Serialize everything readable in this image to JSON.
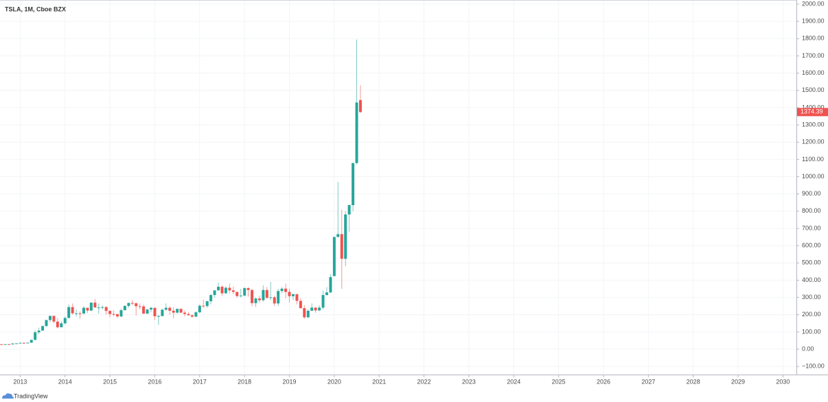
{
  "chart_data": {
    "type": "candlestick",
    "title": "TSLA, 1M, Cboe BZX",
    "footer": "TradingView",
    "up_color": "#26a69a",
    "down_color": "#ef5350",
    "grid": true,
    "x": [
      2012.583,
      2012.667,
      2012.75,
      2012.833,
      2012.917,
      2013,
      2013.083,
      2013.167,
      2013.25,
      2013.333,
      2013.417,
      2013.5,
      2013.583,
      2013.667,
      2013.75,
      2013.833,
      2013.917,
      2014,
      2014.083,
      2014.167,
      2014.25,
      2014.333,
      2014.417,
      2014.5,
      2014.583,
      2014.667,
      2014.75,
      2014.833,
      2014.917,
      2015,
      2015.083,
      2015.167,
      2015.25,
      2015.333,
      2015.417,
      2015.5,
      2015.583,
      2015.667,
      2015.75,
      2015.833,
      2015.917,
      2016,
      2016.083,
      2016.167,
      2016.25,
      2016.333,
      2016.417,
      2016.5,
      2016.583,
      2016.667,
      2016.75,
      2016.833,
      2016.917,
      2017,
      2017.083,
      2017.167,
      2017.25,
      2017.333,
      2017.417,
      2017.5,
      2017.583,
      2017.667,
      2017.75,
      2017.833,
      2017.917,
      2018,
      2018.083,
      2018.167,
      2018.25,
      2018.333,
      2018.417,
      2018.5,
      2018.583,
      2018.667,
      2018.75,
      2018.833,
      2018.917,
      2019,
      2019.083,
      2019.167,
      2019.25,
      2019.333,
      2019.417,
      2019.5,
      2019.583,
      2019.667,
      2019.75,
      2019.833,
      2019.917,
      2020,
      2020.083,
      2020.167,
      2020.25,
      2020.333,
      2020.417,
      2020.5,
      2020.583
    ],
    "open": [
      29,
      28,
      29,
      28,
      33,
      34,
      37,
      35,
      38,
      54,
      98,
      108,
      134,
      169,
      193,
      160,
      127,
      150,
      181,
      244,
      208,
      208,
      207,
      240,
      224,
      270,
      242,
      242,
      244,
      222,
      204,
      203,
      190,
      226,
      251,
      268,
      266,
      249,
      248,
      206,
      230,
      240,
      191,
      192,
      229,
      240,
      223,
      212,
      234,
      212,
      204,
      197,
      189,
      214,
      252,
      250,
      278,
      314,
      341,
      362,
      324,
      356,
      341,
      332,
      308,
      311,
      354,
      343,
      267,
      294,
      284,
      343,
      298,
      301,
      265,
      337,
      351,
      332,
      307,
      319,
      280,
      238,
      185,
      223,
      241,
      225,
      241,
      314,
      329,
      424,
      650,
      667,
      524,
      781,
      835,
      1079,
      1444
    ],
    "high": [
      30,
      30,
      30,
      34,
      35,
      38,
      39,
      39,
      55,
      110,
      125,
      137,
      170,
      194,
      194,
      180,
      160,
      190,
      260,
      265,
      230,
      220,
      250,
      240,
      270,
      291,
      265,
      255,
      250,
      225,
      225,
      205,
      235,
      255,
      270,
      285,
      270,
      265,
      260,
      235,
      245,
      240,
      200,
      234,
      265,
      250,
      245,
      235,
      236,
      225,
      215,
      200,
      220,
      260,
      287,
      280,
      320,
      341,
      386,
      370,
      365,
      380,
      363,
      332,
      350,
      360,
      360,
      350,
      300,
      310,
      370,
      360,
      390,
      310,
      350,
      360,
      380,
      350,
      320,
      320,
      295,
      255,
      230,
      266,
      242,
      255,
      340,
      360,
      435,
      654,
      969,
      809,
      800,
      840,
      1080,
      1795,
      1530
    ],
    "low": [
      27,
      27,
      27,
      27,
      32,
      33,
      33,
      34,
      36,
      52,
      88,
      108,
      130,
      155,
      150,
      120,
      127,
      143,
      179,
      200,
      190,
      177,
      200,
      210,
      220,
      240,
      205,
      230,
      200,
      185,
      191,
      180,
      185,
      225,
      240,
      255,
      195,
      230,
      205,
      205,
      215,
      170,
      141,
      190,
      222,
      200,
      180,
      205,
      210,
      190,
      195,
      181,
      185,
      210,
      240,
      240,
      260,
      300,
      340,
      310,
      320,
      325,
      320,
      300,
      300,
      305,
      305,
      250,
      245,
      270,
      275,
      290,
      285,
      250,
      250,
      325,
      295,
      270,
      285,
      260,
      235,
      176,
      180,
      220,
      211,
      220,
      230,
      310,
      325,
      422,
      650,
      350,
      480,
      681,
      800,
      1071,
      1370
    ],
    "close": [
      28,
      29,
      28,
      33,
      34,
      37,
      35,
      38,
      54,
      98,
      108,
      134,
      169,
      193,
      160,
      127,
      150,
      181,
      244,
      208,
      208,
      207,
      240,
      224,
      270,
      242,
      242,
      244,
      222,
      204,
      203,
      190,
      226,
      251,
      268,
      266,
      249,
      248,
      206,
      230,
      240,
      191,
      192,
      229,
      240,
      223,
      212,
      234,
      212,
      204,
      197,
      189,
      214,
      252,
      250,
      278,
      314,
      341,
      362,
      324,
      356,
      341,
      332,
      308,
      311,
      354,
      343,
      267,
      294,
      284,
      343,
      298,
      301,
      265,
      337,
      351,
      332,
      307,
      319,
      280,
      238,
      185,
      223,
      241,
      225,
      241,
      314,
      329,
      418,
      650,
      667,
      524,
      781,
      835,
      1079,
      1430,
      1374.39
    ],
    "xlim": [
      2012.55,
      2030.3
    ],
    "xticks": [
      2013,
      2014,
      2015,
      2016,
      2017,
      2018,
      2019,
      2020,
      2021,
      2022,
      2023,
      2024,
      2025,
      2026,
      2027,
      2028,
      2029,
      2030
    ],
    "ylim": [
      -147,
      2024
    ],
    "yticks": [
      {
        "value": -100,
        "label": "−100.00"
      },
      {
        "value": 0,
        "label": "0.00"
      },
      {
        "value": 100,
        "label": "100.00"
      },
      {
        "value": 200,
        "label": "200.00"
      },
      {
        "value": 300,
        "label": "300.00"
      },
      {
        "value": 400,
        "label": "400.00"
      },
      {
        "value": 500,
        "label": "500.00"
      },
      {
        "value": 600,
        "label": "600.00"
      },
      {
        "value": 700,
        "label": "700.00"
      },
      {
        "value": 800,
        "label": "800.00"
      },
      {
        "value": 900,
        "label": "900.00"
      },
      {
        "value": 1000,
        "label": "1000.00"
      },
      {
        "value": 1100,
        "label": "1100.00"
      },
      {
        "value": 1200,
        "label": "1200.00"
      },
      {
        "value": 1300,
        "label": "1300.00"
      },
      {
        "value": 1400,
        "label": "1400.00"
      },
      {
        "value": 1500,
        "label": "1500.00"
      },
      {
        "value": 1600,
        "label": "1600.00"
      },
      {
        "value": 1700,
        "label": "1700.00"
      },
      {
        "value": 1800,
        "label": "1800.00"
      },
      {
        "value": 1900,
        "label": "1900.00"
      },
      {
        "value": 2000,
        "label": "2000.00"
      }
    ]
  }
}
